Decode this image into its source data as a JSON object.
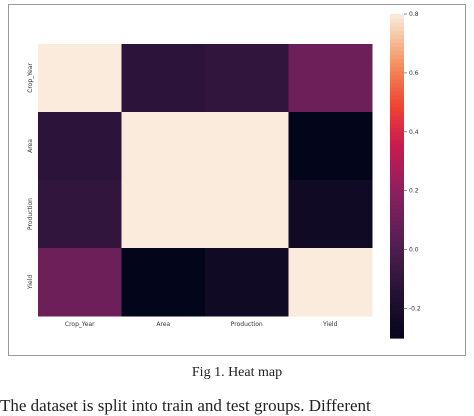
{
  "chart_data": {
    "type": "heatmap",
    "title": "",
    "x_labels": [
      "Crop_Year",
      "Area",
      "Production",
      "Yield"
    ],
    "y_labels": [
      "Crop_Year",
      "Area",
      "Production",
      "Yield"
    ],
    "values": [
      [
        1.0,
        -0.12,
        -0.1,
        0.1
      ],
      [
        -0.12,
        1.0,
        1.0,
        -0.33
      ],
      [
        -0.1,
        1.0,
        1.0,
        -0.24
      ],
      [
        0.1,
        -0.33,
        -0.24,
        1.0
      ]
    ],
    "colorbar": {
      "ticks": [
        0.8,
        0.6,
        0.4,
        0.2,
        0.0,
        -0.2
      ],
      "range": [
        -0.3,
        0.8
      ],
      "colormap": "rocket"
    }
  },
  "caption": "Fig 1. Heat map",
  "body_text": "The dataset is split into train and test groups. Different"
}
